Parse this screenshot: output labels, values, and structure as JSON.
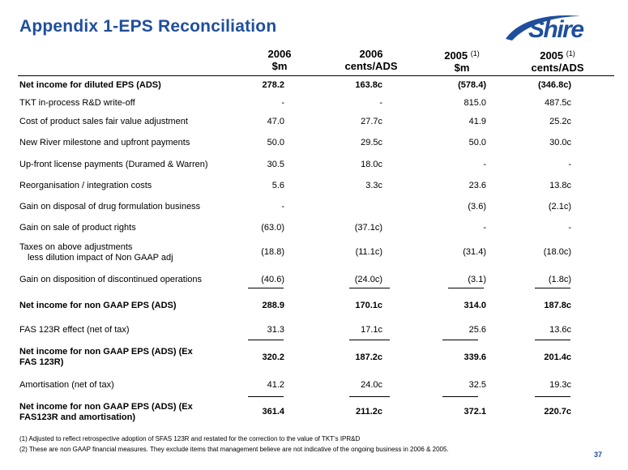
{
  "title": "Appendix 1-EPS Reconciliation",
  "logo": {
    "text": "Shire"
  },
  "columns": [
    {
      "year": "2006",
      "note": "",
      "unit": "$m"
    },
    {
      "year": "2006",
      "note": "",
      "unit": "cents/ADS"
    },
    {
      "year": "2005",
      "note": "(1)",
      "unit": "$m"
    },
    {
      "year": "2005",
      "note": "(1)",
      "unit": "cents/ADS"
    }
  ],
  "rows": [
    {
      "label": "Net income for diluted EPS (ADS)",
      "label2": "",
      "values": [
        "278.2",
        "163.8c",
        "(578.4)",
        "(346.8c)"
      ]
    },
    {
      "label": "TKT in-process R&D write-off",
      "label2": "",
      "values": [
        "-",
        "-",
        "815.0",
        "487.5c"
      ]
    },
    {
      "label": "Cost of product sales fair value adjustment",
      "label2": "",
      "values": [
        "47.0",
        "27.7c",
        "41.9",
        "25.2c"
      ]
    },
    {
      "label": "New River milestone and upfront payments",
      "label2": "",
      "values": [
        "50.0",
        "29.5c",
        "50.0",
        "30.0c"
      ]
    },
    {
      "label": "Up-front license payments (Duramed & Warren)",
      "label2": "",
      "values": [
        "30.5",
        "18.0c",
        "-",
        "-"
      ]
    },
    {
      "label": "Reorganisation / integration costs",
      "label2": "",
      "values": [
        "5.6",
        "3.3c",
        "23.6",
        "13.8c"
      ]
    },
    {
      "label": "Gain on disposal of drug formulation business",
      "label2": "",
      "values": [
        "-",
        "",
        "(3.6)",
        "(2.1c)"
      ]
    },
    {
      "label": "Gain on sale of product rights",
      "label2": "",
      "values": [
        "(63.0)",
        "(37.1c)",
        "-",
        "-"
      ]
    },
    {
      "label": "Taxes on above adjustments",
      "label2": "less dilution impact of Non GAAP adj",
      "values": [
        "(18.8)",
        "(11.1c)",
        "(31.4)",
        "(18.0c)"
      ]
    },
    {
      "label": "Gain on disposition of discontinued operations",
      "label2": "",
      "values": [
        "(40.6)",
        "(24.0c)",
        "(3.1)",
        "(1.8c)"
      ]
    },
    {
      "label": "Net income for non GAAP EPS (ADS)",
      "label2": "",
      "values": [
        "288.9",
        "170.1c",
        "314.0",
        "187.8c"
      ]
    },
    {
      "label": "FAS 123R effect (net of tax)",
      "label2": "",
      "values": [
        "31.3",
        "17.1c",
        "25.6",
        "13.6c"
      ]
    },
    {
      "label": "Net income for non GAAP EPS (ADS)  (Ex",
      "label2": "FAS 123R)",
      "values": [
        "320.2",
        "187.2c",
        "339.6",
        "201.4c"
      ]
    },
    {
      "label": "Amortisation (net of tax)",
      "label2": "",
      "values": [
        "41.2",
        "24.0c",
        "32.5",
        "19.3c"
      ]
    },
    {
      "label": "Net income for non GAAP EPS (ADS) (Ex",
      "label2": "FAS123R and amortisation)",
      "values": [
        "361.4",
        "211.2c",
        "372.1",
        "220.7c"
      ]
    }
  ],
  "footnotes": [
    "(1) Adjusted to reflect retrospective adoption of SFAS 123R and restated for the correction to the value of TKT's IPR&D",
    "(2) These are non GAAP financial measures. They exclude items that management believe are not indicative of the ongoing business in 2006 & 2005."
  ],
  "page_number": "37",
  "colors": {
    "title": "#1f4f9c",
    "text": "#000000"
  }
}
